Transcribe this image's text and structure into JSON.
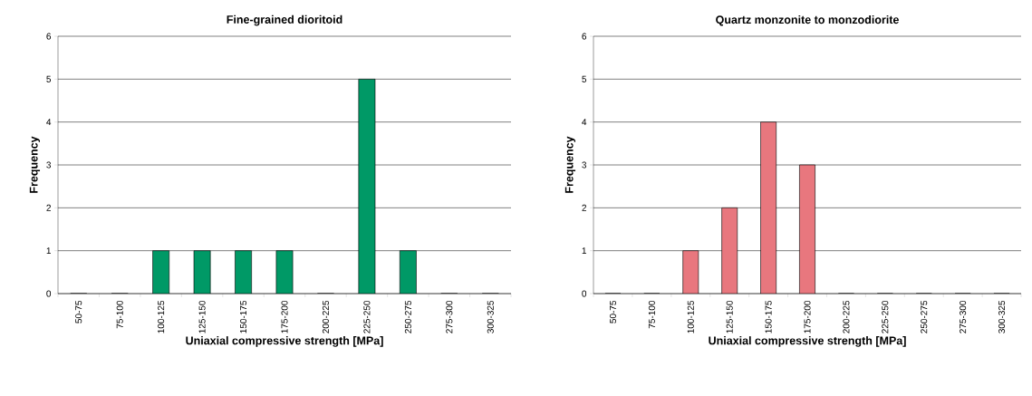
{
  "chart_data": [
    {
      "type": "bar",
      "title": "Fine-grained dioritoid",
      "xlabel": "Uniaxial compressive strength [MPa]",
      "ylabel": "Frequency",
      "categories": [
        "50-75",
        "75-100",
        "100-125",
        "125-150",
        "150-175",
        "175-200",
        "200-225",
        "225-250",
        "250-275",
        "275-300",
        "300-325"
      ],
      "values": [
        0,
        0,
        1,
        1,
        1,
        1,
        0,
        5,
        1,
        0,
        0
      ],
      "color": "#009966",
      "ylim": [
        0,
        6
      ],
      "yticks": [
        0,
        1,
        2,
        3,
        4,
        5,
        6
      ],
      "grid": "y"
    },
    {
      "type": "bar",
      "title": "Quartz monzonite to monzodiorite",
      "xlabel": "Uniaxial compressive strength [MPa]",
      "ylabel": "Frequency",
      "categories": [
        "50-75",
        "75-100",
        "100-125",
        "125-150",
        "150-175",
        "175-200",
        "200-225",
        "225-250",
        "250-275",
        "275-300",
        "300-325"
      ],
      "values": [
        0,
        0,
        1,
        2,
        4,
        3,
        0,
        0,
        0,
        0,
        0
      ],
      "color": "#e8777e",
      "ylim": [
        0,
        6
      ],
      "yticks": [
        0,
        1,
        2,
        3,
        4,
        5,
        6
      ],
      "grid": "y"
    }
  ]
}
